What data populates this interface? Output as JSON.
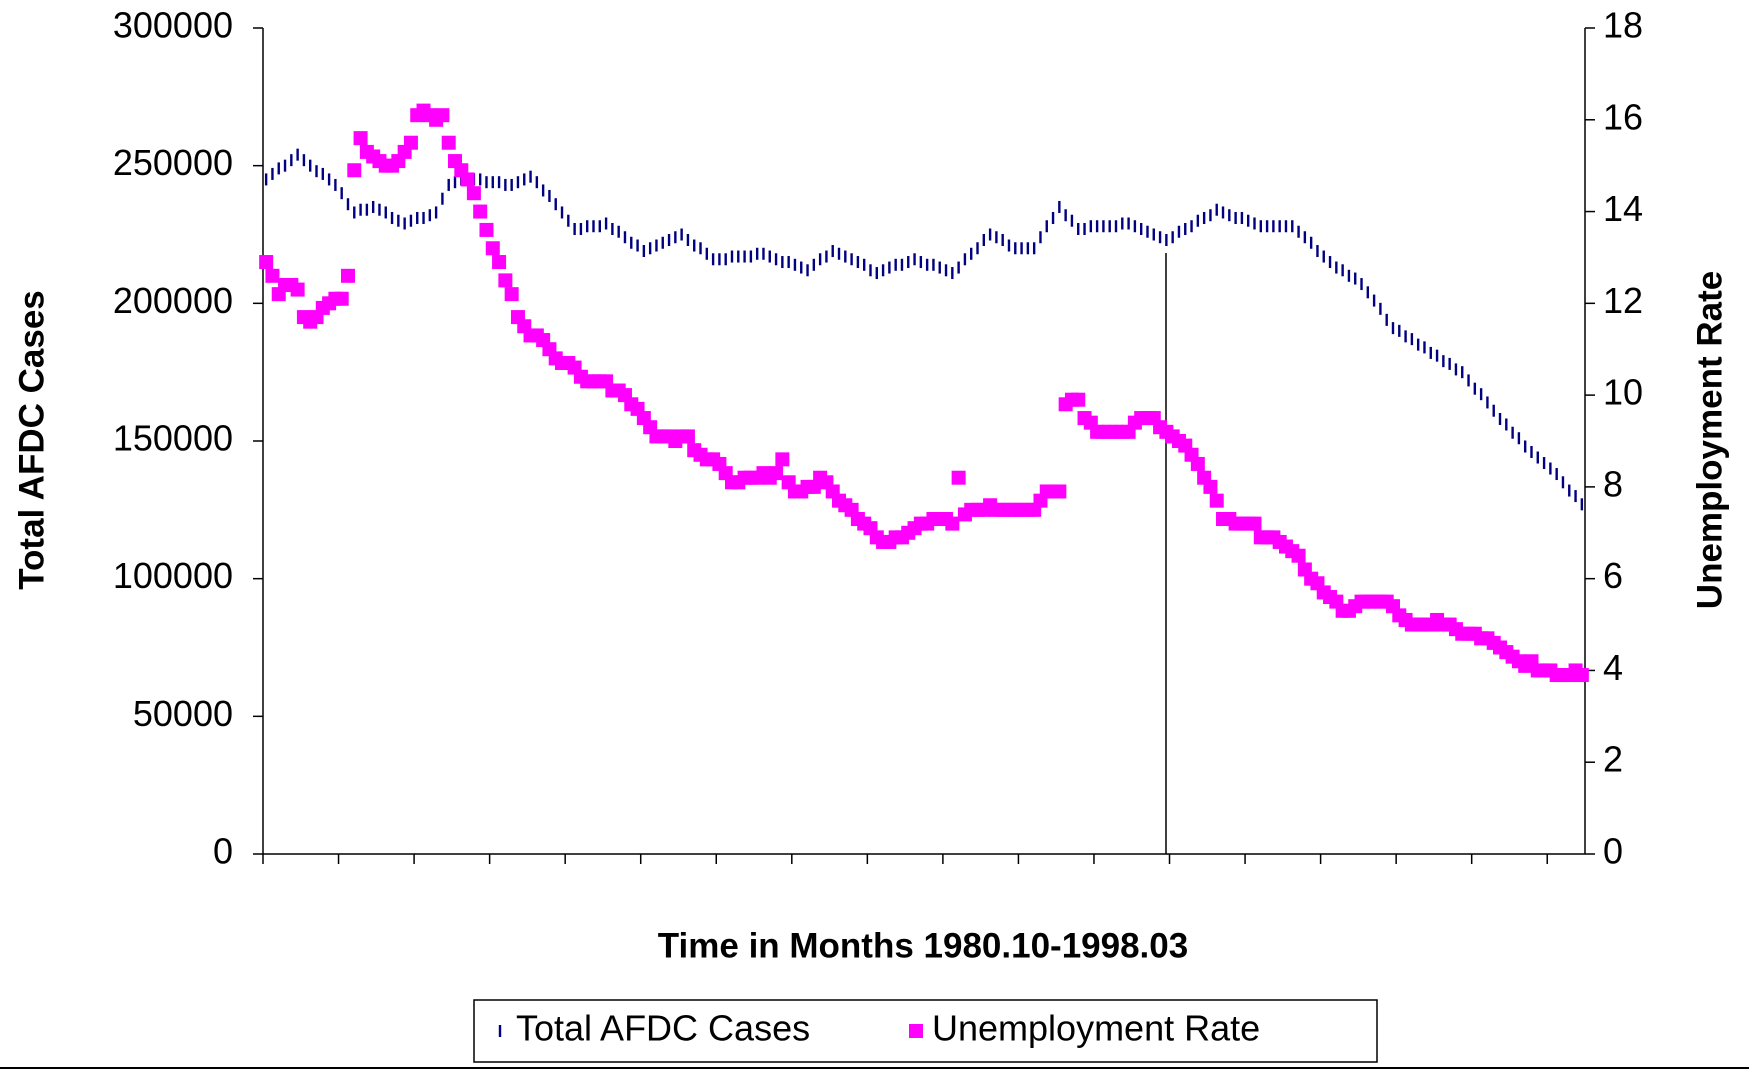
{
  "chart_data": {
    "type": "scatter",
    "xlabel": "Time in Months 1980.10-1998.03",
    "ylabel": "Total AFDC Cases",
    "y2label": "Unemployment Rate",
    "categories": [
      null,
      null,
      null,
      null,
      null,
      null,
      null,
      null,
      null,
      null,
      null,
      null,
      null,
      null,
      null,
      null,
      null,
      null,
      null,
      null,
      null,
      null,
      null,
      null,
      null,
      null,
      null,
      null,
      null,
      null,
      null,
      null,
      null,
      null,
      null,
      null,
      null,
      null,
      null,
      null,
      null,
      null,
      null,
      null,
      null,
      null,
      null,
      null,
      null,
      null,
      null,
      null,
      null,
      null,
      null,
      null,
      null,
      null,
      null,
      null,
      null,
      null,
      null,
      null,
      null,
      null,
      null,
      null,
      null,
      null,
      null,
      null,
      null,
      null,
      null,
      null,
      null,
      null,
      null,
      null,
      null,
      null,
      null,
      null,
      null,
      null,
      null,
      null,
      null,
      null,
      null,
      null,
      null,
      null,
      null,
      null,
      null,
      null,
      null,
      null,
      null,
      null,
      null,
      null,
      null,
      null,
      null,
      null,
      null,
      null,
      null,
      null,
      null,
      null,
      null,
      null,
      null,
      null,
      null,
      null,
      null,
      null,
      null,
      null,
      null,
      null,
      null,
      null,
      null,
      null,
      null,
      null,
      null,
      null,
      null,
      null,
      null,
      null,
      null,
      null,
      null,
      null,
      null,
      null,
      null,
      null,
      null,
      null,
      null,
      null,
      null,
      null,
      null,
      null,
      null,
      null,
      null,
      null,
      null,
      null,
      null,
      null,
      null,
      null,
      null,
      null,
      null,
      null,
      null,
      null,
      null,
      null,
      null,
      null,
      null,
      null,
      null,
      null,
      null,
      null,
      null,
      null,
      null,
      null,
      null,
      null,
      null,
      null,
      null,
      null,
      null,
      null,
      null,
      null,
      null,
      null,
      null,
      null,
      null,
      null,
      null,
      null,
      null,
      null,
      null,
      null,
      null,
      null,
      null,
      null
    ],
    "ylim": [
      0,
      300000
    ],
    "yticks": [
      0,
      50000,
      100000,
      150000,
      200000,
      250000,
      300000
    ],
    "y2lim": [
      0,
      18
    ],
    "y2ticks": [
      0,
      2,
      4,
      6,
      8,
      10,
      12,
      14,
      16,
      18
    ],
    "legend": "bottom",
    "series": [
      {
        "name": "Total AFDC Cases",
        "color": "#000080",
        "marker": "dash",
        "values": [
          245000,
          247000,
          249000,
          250000,
          252000,
          254000,
          252000,
          250000,
          248000,
          247000,
          245000,
          243000,
          240000,
          236000,
          233000,
          234000,
          234000,
          235000,
          234000,
          233000,
          231000,
          230000,
          229000,
          230000,
          231000,
          231000,
          232000,
          233000,
          238000,
          243000,
          244000,
          245000,
          245000,
          245000,
          245000,
          244000,
          244000,
          244000,
          243000,
          243000,
          244000,
          245000,
          246000,
          244000,
          241000,
          239000,
          236000,
          233000,
          230000,
          227000,
          227000,
          228000,
          228000,
          228000,
          229000,
          227000,
          226000,
          224000,
          222000,
          221000,
          219000,
          220000,
          221000,
          222000,
          223000,
          224000,
          225000,
          223000,
          221000,
          220000,
          218000,
          216000,
          216000,
          216000,
          217000,
          217000,
          217000,
          217000,
          218000,
          218000,
          217000,
          216000,
          215000,
          215000,
          214000,
          213000,
          212000,
          214000,
          216000,
          217000,
          219000,
          218000,
          217000,
          216000,
          215000,
          214000,
          212000,
          211000,
          212000,
          213000,
          214000,
          214000,
          215000,
          216000,
          215000,
          214000,
          214000,
          213000,
          212000,
          211000,
          213000,
          216000,
          218000,
          220000,
          223000,
          225000,
          224000,
          223000,
          221000,
          220000,
          220000,
          220000,
          220000,
          224000,
          228000,
          231000,
          235000,
          232000,
          230000,
          227000,
          227000,
          228000,
          228000,
          228000,
          228000,
          228000,
          229000,
          229000,
          228000,
          227000,
          226000,
          225000,
          224000,
          223000,
          224000,
          226000,
          227000,
          228000,
          230000,
          231000,
          232000,
          234000,
          233000,
          232000,
          231000,
          231000,
          230000,
          229000,
          228000,
          228000,
          228000,
          228000,
          228000,
          228000,
          226000,
          224000,
          222000,
          219000,
          217000,
          215000,
          213000,
          212000,
          210000,
          209000,
          207000,
          204000,
          201000,
          198000,
          194000,
          191000,
          190000,
          188000,
          187000,
          185000,
          184000,
          182000,
          181000,
          179000,
          178000,
          176000,
          175000,
          172000,
          169000,
          167000,
          164000,
          161000,
          158000,
          156000,
          153000,
          151000,
          148000,
          146000,
          144000,
          142000,
          140000,
          138000,
          135000,
          132000,
          130000,
          127000
        ]
      },
      {
        "name": "Unemployment Rate",
        "color": "#ff00ff",
        "marker": "square",
        "axis": "y2",
        "values": [
          12.9,
          12.6,
          12.2,
          12.4,
          12.4,
          12.3,
          11.7,
          11.6,
          11.7,
          11.9,
          12.0,
          12.1,
          12.1,
          12.6,
          14.9,
          15.6,
          15.3,
          15.2,
          15.1,
          15.0,
          15.0,
          15.1,
          15.3,
          15.5,
          16.1,
          16.2,
          16.1,
          16.0,
          16.1,
          15.5,
          15.1,
          14.9,
          14.7,
          14.4,
          14.0,
          13.6,
          13.2,
          12.9,
          12.5,
          12.2,
          11.7,
          11.5,
          11.3,
          11.3,
          11.2,
          11.0,
          10.8,
          10.7,
          10.7,
          10.6,
          10.4,
          10.3,
          10.3,
          10.3,
          10.3,
          10.1,
          10.1,
          10.0,
          9.8,
          9.7,
          9.5,
          9.3,
          9.1,
          9.1,
          9.1,
          9.0,
          9.1,
          9.1,
          8.8,
          8.7,
          8.6,
          8.6,
          8.5,
          8.3,
          8.1,
          8.1,
          8.2,
          8.2,
          8.2,
          8.3,
          8.2,
          8.3,
          8.6,
          8.1,
          7.9,
          7.9,
          8.0,
          8.0,
          8.2,
          8.1,
          7.9,
          7.7,
          7.6,
          7.5,
          7.3,
          7.2,
          7.1,
          6.9,
          6.8,
          6.8,
          6.9,
          6.9,
          7.0,
          7.1,
          7.2,
          7.2,
          7.3,
          7.3,
          7.3,
          7.2,
          8.2,
          7.4,
          7.5,
          7.5,
          7.5,
          7.6,
          7.5,
          7.5,
          7.5,
          7.5,
          7.5,
          7.5,
          7.5,
          7.7,
          7.9,
          7.9,
          7.9,
          9.8,
          9.9,
          9.9,
          9.5,
          9.4,
          9.2,
          9.2,
          9.2,
          9.2,
          9.2,
          9.2,
          9.4,
          9.5,
          9.5,
          9.5,
          9.3,
          9.2,
          9.1,
          9.0,
          8.9,
          8.7,
          8.5,
          8.2,
          8.0,
          7.7,
          7.3,
          7.3,
          7.2,
          7.2,
          7.2,
          7.2,
          6.9,
          6.9,
          6.9,
          6.8,
          6.7,
          6.6,
          6.5,
          6.2,
          6.0,
          5.9,
          5.7,
          5.6,
          5.5,
          5.3,
          5.3,
          5.4,
          5.5,
          5.5,
          5.5,
          5.5,
          5.5,
          5.4,
          5.2,
          5.1,
          5.0,
          5.0,
          5.0,
          5.0,
          5.1,
          5.0,
          5.0,
          4.9,
          4.8,
          4.8,
          4.8,
          4.7,
          4.7,
          4.6,
          4.5,
          4.4,
          4.3,
          4.2,
          4.1,
          4.2,
          4.0,
          4.0,
          4.0,
          3.9,
          3.9,
          3.9,
          4.0,
          3.9
        ]
      }
    ]
  }
}
